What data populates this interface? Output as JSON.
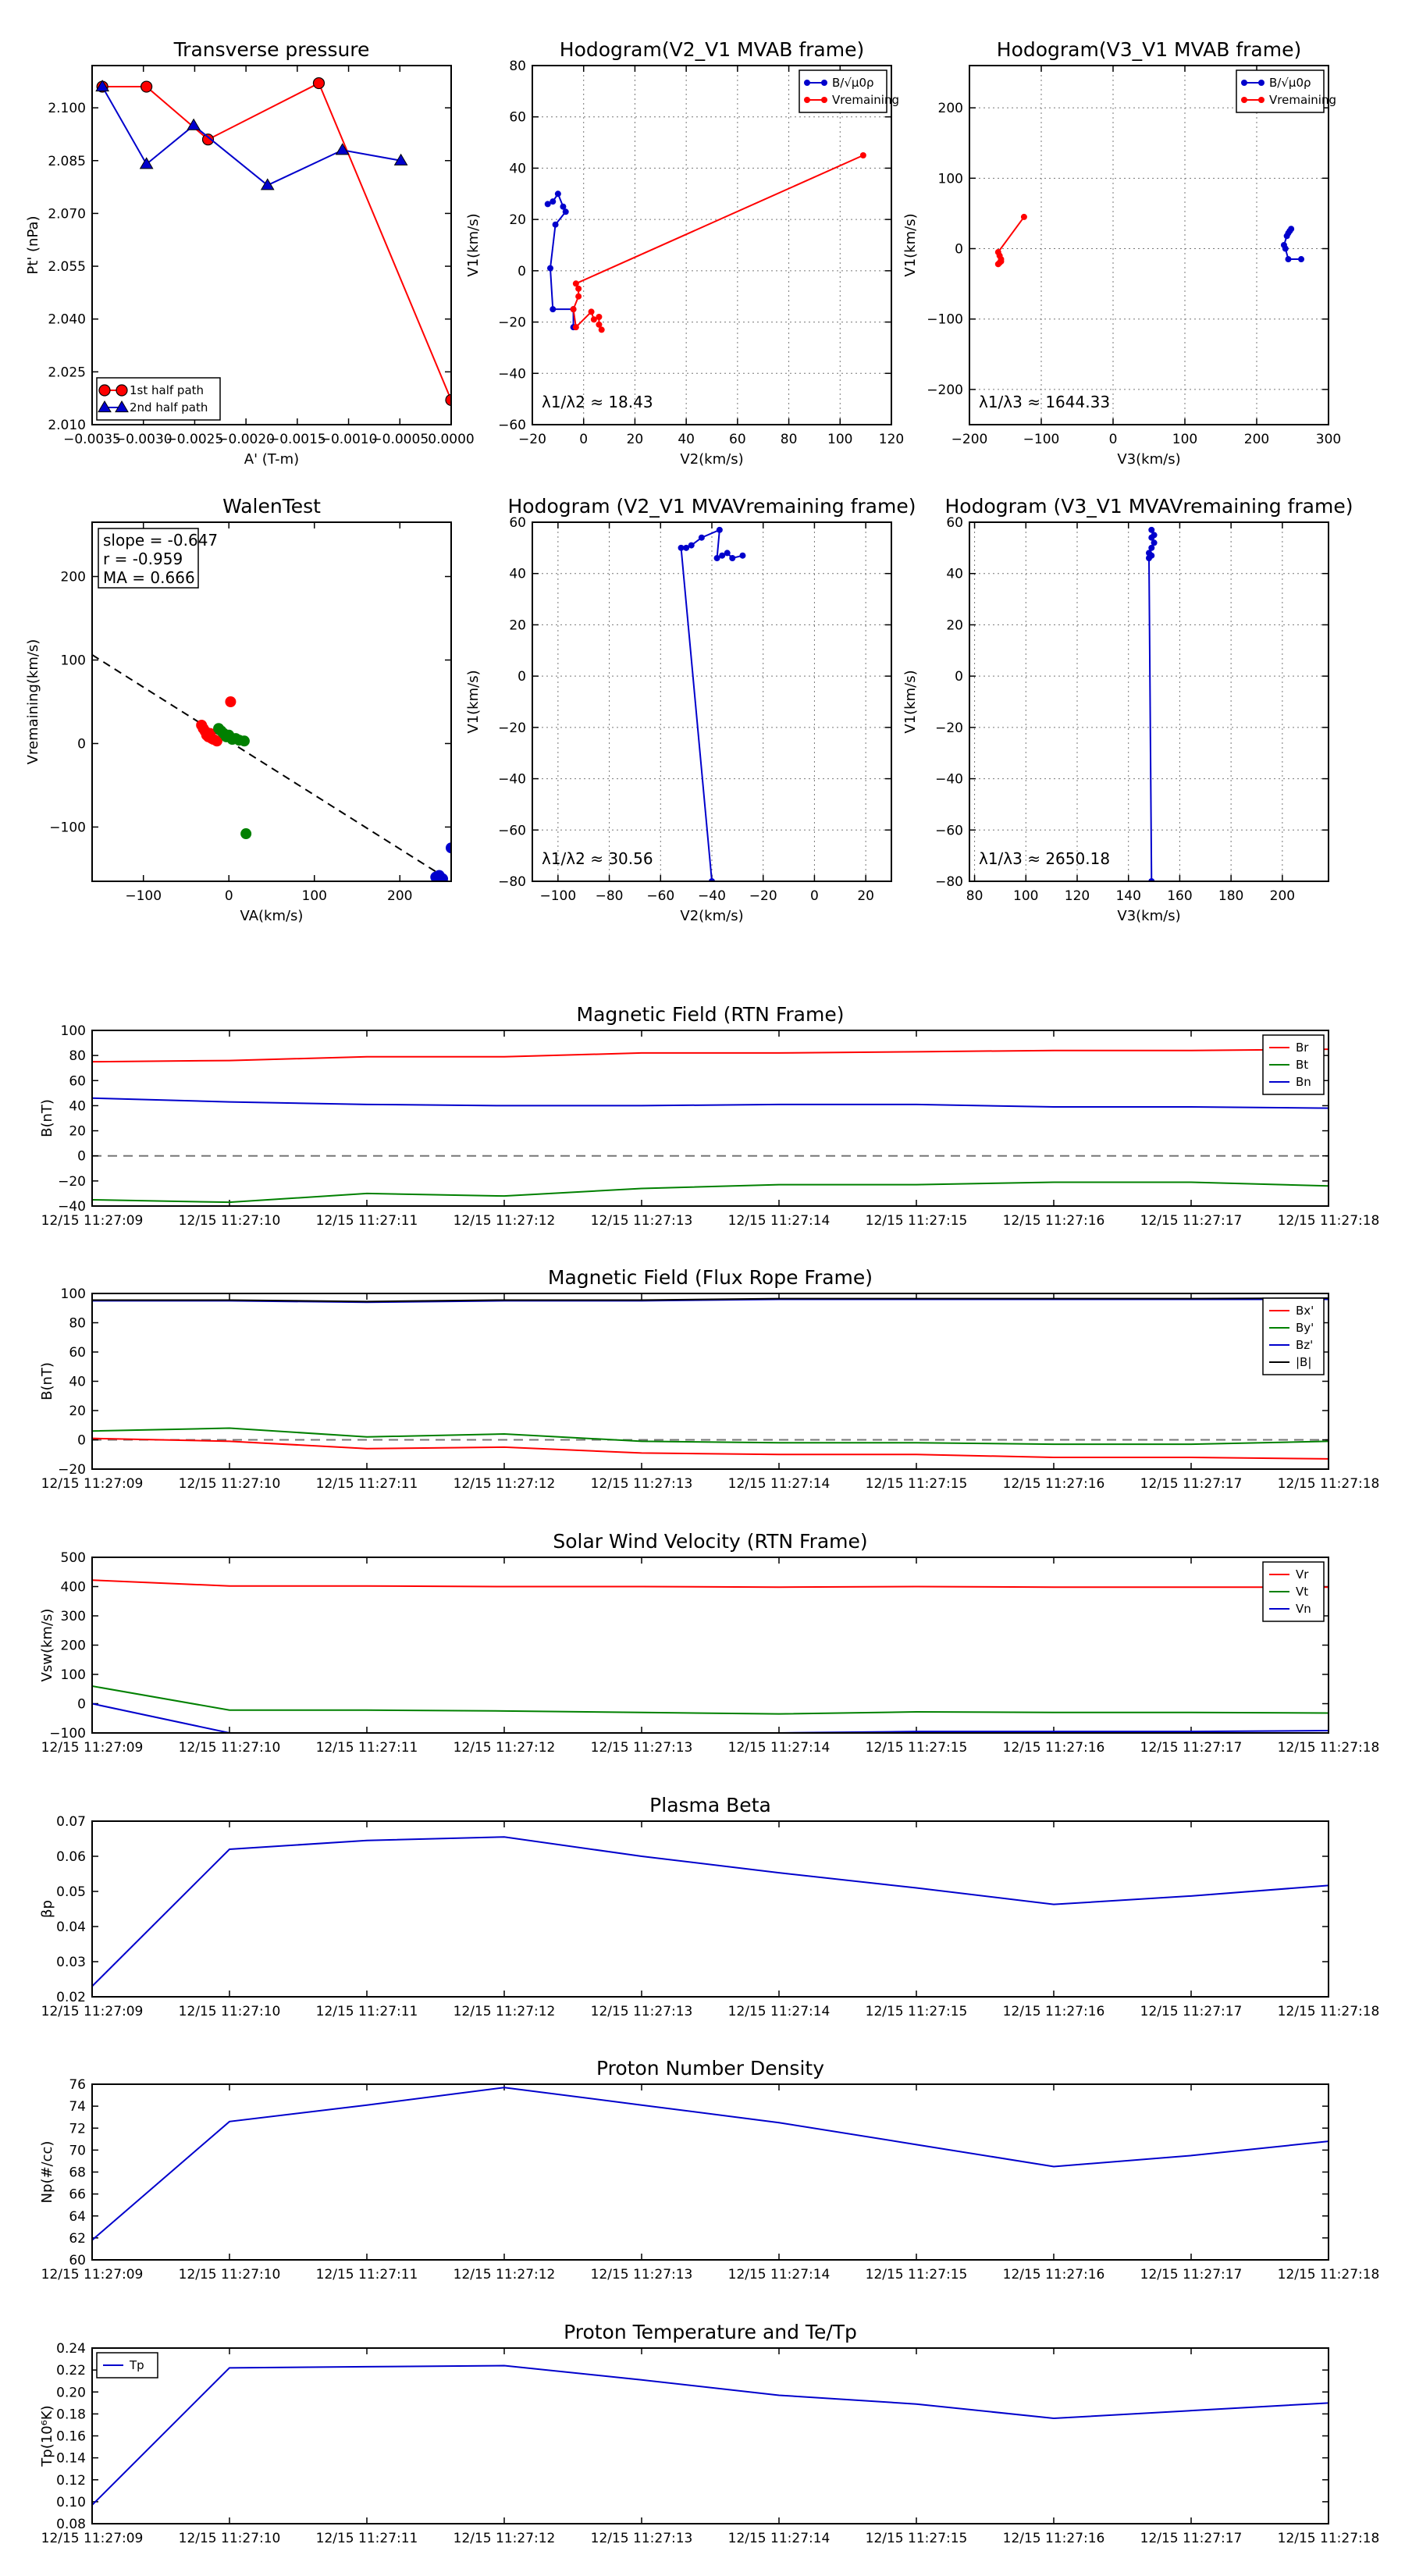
{
  "chart_data": [
    {
      "id": "transverse-pressure",
      "type": "line",
      "title": "Transverse pressure",
      "xlabel": "A' (T-m)",
      "ylabel": "Pt' (nPa)",
      "xlim": [
        -0.0035,
        0.0
      ],
      "ylim": [
        2.01,
        2.112
      ],
      "grid": false,
      "legend": "bottom-left",
      "x_ticks": [
        -0.0035,
        -0.003,
        -0.0025,
        -0.002,
        -0.0015,
        -0.001,
        -0.0005,
        0.0
      ],
      "x_tick_labels": [
        "−0.0035",
        "−0.0030",
        "−0.0025",
        "−0.0020",
        "−0.0015",
        "−0.0010",
        "−0.0005",
        "0.0000"
      ],
      "y_ticks": [
        2.01,
        2.025,
        2.04,
        2.055,
        2.07,
        2.085,
        2.1
      ],
      "y_tick_labels": [
        "2.010",
        "2.025",
        "2.040",
        "2.055",
        "2.070",
        "2.085",
        "2.100"
      ],
      "series": [
        {
          "name": "1st half path",
          "color": "#ff0000",
          "marker": "circle",
          "x": [
            -0.0034,
            -0.00297,
            -0.00237,
            -0.00129,
            0.0
          ],
          "y": [
            2.106,
            2.106,
            2.091,
            2.107,
            2.017
          ]
        },
        {
          "name": "2nd half path",
          "color": "#0000cc",
          "marker": "triangle",
          "x": [
            -0.0034,
            -0.00297,
            -0.00251,
            -0.00179,
            -0.00106,
            -0.00049
          ],
          "y": [
            2.106,
            2.084,
            2.095,
            2.078,
            2.088,
            2.085
          ]
        }
      ]
    },
    {
      "id": "hodogram-v2-v1-mvab",
      "type": "line",
      "title": "Hodogram(V2_V1 MVAB frame)",
      "xlabel": "V2(km/s)",
      "ylabel": "V1(km/s)",
      "xlim": [
        -20,
        120
      ],
      "ylim": [
        -60,
        80
      ],
      "grid": true,
      "legend": "top-right",
      "x_ticks": [
        -20,
        0,
        20,
        40,
        60,
        80,
        100,
        120
      ],
      "x_tick_labels": [
        "−20",
        "0",
        "20",
        "40",
        "60",
        "80",
        "100",
        "120"
      ],
      "y_ticks": [
        -60,
        -40,
        -20,
        0,
        20,
        40,
        60,
        80
      ],
      "y_tick_labels": [
        "−60",
        "−40",
        "−20",
        "0",
        "20",
        "40",
        "60",
        "80"
      ],
      "annotation": "λ1/λ2 ≈ 18.43",
      "series": [
        {
          "name": "B/√μ0ρ",
          "color": "#0000cc",
          "marker": "dot",
          "x": [
            -14,
            -12,
            -10,
            -8,
            -7,
            -11,
            -13,
            -12,
            -4,
            -4
          ],
          "y": [
            26,
            27,
            30,
            25,
            23,
            18,
            1,
            -15,
            -15,
            -22
          ]
        },
        {
          "name": "Vremaining",
          "color": "#ff0000",
          "marker": "dot",
          "x": [
            109,
            -3,
            -2,
            -2,
            -4,
            -3,
            3,
            4,
            6,
            6,
            7
          ],
          "y": [
            45,
            -5,
            -7,
            -10,
            -15,
            -22,
            -16,
            -19,
            -18,
            -21,
            -23
          ]
        }
      ]
    },
    {
      "id": "hodogram-v3-v1-mvab",
      "type": "line",
      "title": "Hodogram(V3_V1 MVAB frame)",
      "xlabel": "V3(km/s)",
      "ylabel": "V1(km/s)",
      "xlim": [
        -200,
        300
      ],
      "ylim": [
        -250,
        260
      ],
      "grid": true,
      "legend": "top-right",
      "x_ticks": [
        -200,
        -100,
        0,
        100,
        200,
        300
      ],
      "x_tick_labels": [
        "−200",
        "−100",
        "0",
        "100",
        "200",
        "300"
      ],
      "y_ticks": [
        -200,
        -100,
        0,
        100,
        200
      ],
      "y_tick_labels": [
        "−200",
        "−100",
        "0",
        "100",
        "200"
      ],
      "annotation": "λ1/λ3 ≈ 1644.33",
      "series": [
        {
          "name": "B/√μ0ρ",
          "color": "#0000cc",
          "marker": "dot",
          "x": [
            262,
            244,
            240,
            238,
            242,
            244,
            246,
            248
          ],
          "y": [
            -15,
            -15,
            0,
            5,
            18,
            22,
            25,
            28
          ]
        },
        {
          "name": "Vremaining",
          "color": "#ff0000",
          "marker": "dot",
          "x": [
            -124,
            -160,
            -158,
            -156,
            -158,
            -160,
            -156
          ],
          "y": [
            45,
            -5,
            -10,
            -15,
            -20,
            -22,
            -18
          ]
        }
      ]
    },
    {
      "id": "walen-test",
      "type": "scatter",
      "title": "WalenTest",
      "xlabel": "VA(km/s)",
      "ylabel": "Vremaining(km/s)",
      "xlim": [
        -160,
        260
      ],
      "ylim": [
        -165,
        265
      ],
      "grid": false,
      "x_ticks": [
        -100,
        0,
        100,
        200
      ],
      "x_tick_labels": [
        "−100",
        "0",
        "100",
        "200"
      ],
      "y_ticks": [
        -100,
        0,
        100,
        200
      ],
      "y_tick_labels": [
        "−100",
        "0",
        "100",
        "200"
      ],
      "stats_box": [
        "slope = -0.647",
        "r = -0.959",
        "MA = 0.666"
      ],
      "fit_line": {
        "x": [
          -160,
          260
        ],
        "y": [
          106.2,
          -165.0
        ]
      },
      "series": [
        {
          "name": "red",
          "color": "#ff0000",
          "x": [
            -32,
            -30,
            -28,
            -26,
            -24,
            -22,
            -20,
            -18,
            -14,
            2
          ],
          "y": [
            22,
            18,
            15,
            10,
            8,
            12,
            6,
            5,
            3,
            50
          ]
        },
        {
          "name": "green",
          "color": "#008000",
          "x": [
            -12,
            -9,
            -6,
            -3,
            0,
            4,
            8,
            12,
            18,
            20
          ],
          "y": [
            18,
            15,
            12,
            8,
            10,
            5,
            6,
            4,
            3,
            -108
          ]
        },
        {
          "name": "blue",
          "color": "#0000cc",
          "x": [
            242,
            246,
            250,
            260
          ],
          "y": [
            -160,
            -158,
            -162,
            -125
          ]
        }
      ]
    },
    {
      "id": "hodogram-v2-v1-mvav",
      "type": "line",
      "title": "Hodogram (V2_V1 MVAVremaining frame)",
      "xlabel": "V2(km/s)",
      "ylabel": "V1(km/s)",
      "xlim": [
        -110,
        30
      ],
      "ylim": [
        -80,
        60
      ],
      "grid": true,
      "x_ticks": [
        -100,
        -80,
        -60,
        -40,
        -20,
        0,
        20
      ],
      "x_tick_labels": [
        "−100",
        "−80",
        "−60",
        "−40",
        "−20",
        "0",
        "20"
      ],
      "y_ticks": [
        -80,
        -60,
        -40,
        -20,
        0,
        20,
        40,
        60
      ],
      "y_tick_labels": [
        "−80",
        "−60",
        "−40",
        "−20",
        "0",
        "20",
        "40",
        "60"
      ],
      "annotation": "λ1/λ2 ≈ 30.56",
      "series": [
        {
          "name": "path",
          "color": "#0000cc",
          "marker": "dot",
          "x": [
            -40,
            -52,
            -50,
            -48,
            -44,
            -37,
            -38,
            -36,
            -34,
            -32,
            -28
          ],
          "y": [
            -80,
            50,
            50,
            51,
            54,
            57,
            46,
            47,
            48,
            46,
            47
          ]
        }
      ]
    },
    {
      "id": "hodogram-v3-v1-mvav",
      "type": "line",
      "title": "Hodogram (V3_V1 MVAVremaining frame)",
      "xlabel": "V3(km/s)",
      "ylabel": "V1(km/s)",
      "xlim": [
        78,
        218
      ],
      "ylim": [
        -80,
        60
      ],
      "grid": true,
      "x_ticks": [
        80,
        100,
        120,
        140,
        160,
        180,
        200
      ],
      "x_tick_labels": [
        "80",
        "100",
        "120",
        "140",
        "160",
        "180",
        "200"
      ],
      "y_ticks": [
        -80,
        -60,
        -40,
        -20,
        0,
        20,
        40,
        60
      ],
      "y_tick_labels": [
        "−80",
        "−60",
        "−40",
        "−20",
        "0",
        "20",
        "40",
        "60"
      ],
      "annotation": "λ1/λ3 ≈ 2650.18",
      "series": [
        {
          "name": "path",
          "color": "#0000cc",
          "marker": "dot",
          "x": [
            149,
            148,
            149,
            148,
            149,
            150,
            149,
            150,
            149
          ],
          "y": [
            -80,
            46,
            47,
            48,
            50,
            52,
            54,
            55,
            57
          ]
        }
      ]
    },
    {
      "id": "magnetic-field-rtn",
      "type": "line",
      "title": "Magnetic Field (RTN Frame)",
      "ylabel": "B(nT)",
      "xlabel": "",
      "x_tick_labels": [
        "12/15 11:27:09",
        "12/15 11:27:10",
        "12/15 11:27:11",
        "12/15 11:27:12",
        "12/15 11:27:13",
        "12/15 11:27:14",
        "12/15 11:27:15",
        "12/15 11:27:16",
        "12/15 11:27:17",
        "12/15 11:27:18"
      ],
      "ylim": [
        -40,
        100
      ],
      "y_ticks": [
        -40,
        -20,
        0,
        20,
        40,
        60,
        80,
        100
      ],
      "y_tick_labels": [
        "−40",
        "−20",
        "0",
        "20",
        "40",
        "60",
        "80",
        "100"
      ],
      "zero_line": true,
      "legend": "top-right",
      "x": [
        0,
        1,
        2,
        3,
        4,
        5,
        6,
        7,
        8,
        9
      ],
      "series": [
        {
          "name": "Br",
          "color": "#ff0000",
          "values": [
            75,
            76,
            79,
            79,
            82,
            82,
            83,
            84,
            84,
            85
          ]
        },
        {
          "name": "Bt",
          "color": "#008000",
          "values": [
            -35,
            -37,
            -30,
            -32,
            -26,
            -23,
            -23,
            -21,
            -21,
            -24
          ]
        },
        {
          "name": "Bn",
          "color": "#0000cc",
          "values": [
            46,
            43,
            41,
            40,
            40,
            41,
            41,
            39,
            39,
            38
          ]
        }
      ]
    },
    {
      "id": "magnetic-field-flux-rope",
      "type": "line",
      "title": "Magnetic Field (Flux Rope Frame)",
      "ylabel": "B(nT)",
      "xlabel": "",
      "x_tick_labels": [
        "12/15 11:27:09",
        "12/15 11:27:10",
        "12/15 11:27:11",
        "12/15 11:27:12",
        "12/15 11:27:13",
        "12/15 11:27:14",
        "12/15 11:27:15",
        "12/15 11:27:16",
        "12/15 11:27:17",
        "12/15 11:27:18"
      ],
      "ylim": [
        -20,
        100
      ],
      "y_ticks": [
        -20,
        0,
        20,
        40,
        60,
        80,
        100
      ],
      "y_tick_labels": [
        "−20",
        "0",
        "20",
        "40",
        "60",
        "80",
        "100"
      ],
      "zero_line": true,
      "legend": "top-right",
      "x": [
        0,
        1,
        2,
        3,
        4,
        5,
        6,
        7,
        8,
        9
      ],
      "series": [
        {
          "name": "Bx'",
          "color": "#ff0000",
          "values": [
            1,
            -1,
            -6,
            -5,
            -9,
            -10,
            -10,
            -12,
            -12,
            -13
          ]
        },
        {
          "name": "By'",
          "color": "#008000",
          "values": [
            6,
            8,
            2,
            4,
            -1,
            -2,
            -2,
            -3,
            -3,
            -1
          ]
        },
        {
          "name": "Bz'",
          "color": "#0000cc",
          "values": [
            95,
            95,
            94,
            95,
            95,
            96,
            96,
            96,
            96,
            96
          ]
        },
        {
          "name": "|B|",
          "color": "#000000",
          "values": [
            95.5,
            95.5,
            94.5,
            95.5,
            95.5,
            96.5,
            96.5,
            96.5,
            96.5,
            96.8
          ]
        }
      ]
    },
    {
      "id": "solar-wind-velocity",
      "type": "line",
      "title": "Solar Wind Velocity (RTN Frame)",
      "ylabel": "Vsw(km/s)",
      "xlabel": "",
      "x_tick_labels": [
        "12/15 11:27:09",
        "12/15 11:27:10",
        "12/15 11:27:11",
        "12/15 11:27:12",
        "12/15 11:27:13",
        "12/15 11:27:14",
        "12/15 11:27:15",
        "12/15 11:27:16",
        "12/15 11:27:17",
        "12/15 11:27:18"
      ],
      "ylim": [
        -100,
        500
      ],
      "y_ticks": [
        -100,
        0,
        100,
        200,
        300,
        400,
        500
      ],
      "y_tick_labels": [
        "−100",
        "0",
        "100",
        "200",
        "300",
        "400",
        "500"
      ],
      "legend": "top-right",
      "x": [
        0,
        1,
        2,
        3,
        4,
        5,
        6,
        7,
        8,
        9
      ],
      "series": [
        {
          "name": "Vr",
          "color": "#ff0000",
          "values": [
            422,
            402,
            402,
            400,
            400,
            398,
            400,
            398,
            398,
            398
          ]
        },
        {
          "name": "Vt",
          "color": "#008000",
          "values": [
            60,
            -22,
            -22,
            -25,
            -30,
            -35,
            -28,
            -30,
            -30,
            -32
          ]
        },
        {
          "name": "Vn",
          "color": "#0000cc",
          "values": [
            0,
            -100,
            -100,
            -100,
            -100,
            -100,
            -95,
            -95,
            -95,
            -92
          ]
        }
      ]
    },
    {
      "id": "plasma-beta",
      "type": "line",
      "title": "Plasma Beta",
      "ylabel": "βp",
      "xlabel": "",
      "x_tick_labels": [
        "12/15 11:27:09",
        "12/15 11:27:10",
        "12/15 11:27:11",
        "12/15 11:27:12",
        "12/15 11:27:13",
        "12/15 11:27:14",
        "12/15 11:27:15",
        "12/15 11:27:16",
        "12/15 11:27:17",
        "12/15 11:27:18"
      ],
      "ylim": [
        0.02,
        0.07
      ],
      "y_ticks": [
        0.02,
        0.03,
        0.04,
        0.05,
        0.06,
        0.07
      ],
      "y_tick_labels": [
        "0.02",
        "0.03",
        "0.04",
        "0.05",
        "0.06",
        "0.07"
      ],
      "x": [
        0,
        1,
        2,
        3,
        4,
        5,
        6,
        7,
        8,
        9
      ],
      "series": [
        {
          "name": "",
          "color": "#0000cc",
          "values": [
            0.023,
            0.062,
            0.0645,
            0.0655,
            0.06,
            0.0553,
            0.051,
            0.0463,
            0.0487,
            0.0517
          ]
        }
      ]
    },
    {
      "id": "proton-number-density",
      "type": "line",
      "title": "Proton Number Density",
      "ylabel": "Np(#/cc)",
      "xlabel": "",
      "x_tick_labels": [
        "12/15 11:27:09",
        "12/15 11:27:10",
        "12/15 11:27:11",
        "12/15 11:27:12",
        "12/15 11:27:13",
        "12/15 11:27:14",
        "12/15 11:27:15",
        "12/15 11:27:16",
        "12/15 11:27:17",
        "12/15 11:27:18"
      ],
      "ylim": [
        60,
        76
      ],
      "y_ticks": [
        60,
        62,
        64,
        66,
        68,
        70,
        72,
        74,
        76
      ],
      "y_tick_labels": [
        "60",
        "62",
        "64",
        "66",
        "68",
        "70",
        "72",
        "74",
        "76"
      ],
      "x": [
        0,
        1,
        2,
        3,
        4,
        5,
        6,
        7,
        8,
        9
      ],
      "series": [
        {
          "name": "",
          "color": "#0000cc",
          "values": [
            61.8,
            72.6,
            74.1,
            75.7,
            74.1,
            72.5,
            70.5,
            68.5,
            69.5,
            70.8
          ]
        }
      ]
    },
    {
      "id": "proton-temperature",
      "type": "line",
      "title": "Proton Temperature and Te/Tp",
      "ylabel": "Tp(10⁶K)",
      "xlabel": "",
      "x_tick_labels": [
        "12/15 11:27:09",
        "12/15 11:27:10",
        "12/15 11:27:11",
        "12/15 11:27:12",
        "12/15 11:27:13",
        "12/15 11:27:14",
        "12/15 11:27:15",
        "12/15 11:27:16",
        "12/15 11:27:17",
        "12/15 11:27:18"
      ],
      "ylim": [
        0.08,
        0.24
      ],
      "y_ticks": [
        0.08,
        0.1,
        0.12,
        0.14,
        0.16,
        0.18,
        0.2,
        0.22,
        0.24
      ],
      "y_tick_labels": [
        "0.08",
        "0.10",
        "0.12",
        "0.14",
        "0.16",
        "0.18",
        "0.20",
        "0.22",
        "0.24"
      ],
      "legend": "top-left",
      "x": [
        0,
        1,
        2,
        3,
        4,
        5,
        6,
        7,
        8,
        9
      ],
      "series": [
        {
          "name": "Tp",
          "color": "#0000cc",
          "values": [
            0.097,
            0.222,
            0.223,
            0.224,
            0.211,
            0.197,
            0.189,
            0.176,
            0.183,
            0.19
          ]
        }
      ]
    }
  ]
}
